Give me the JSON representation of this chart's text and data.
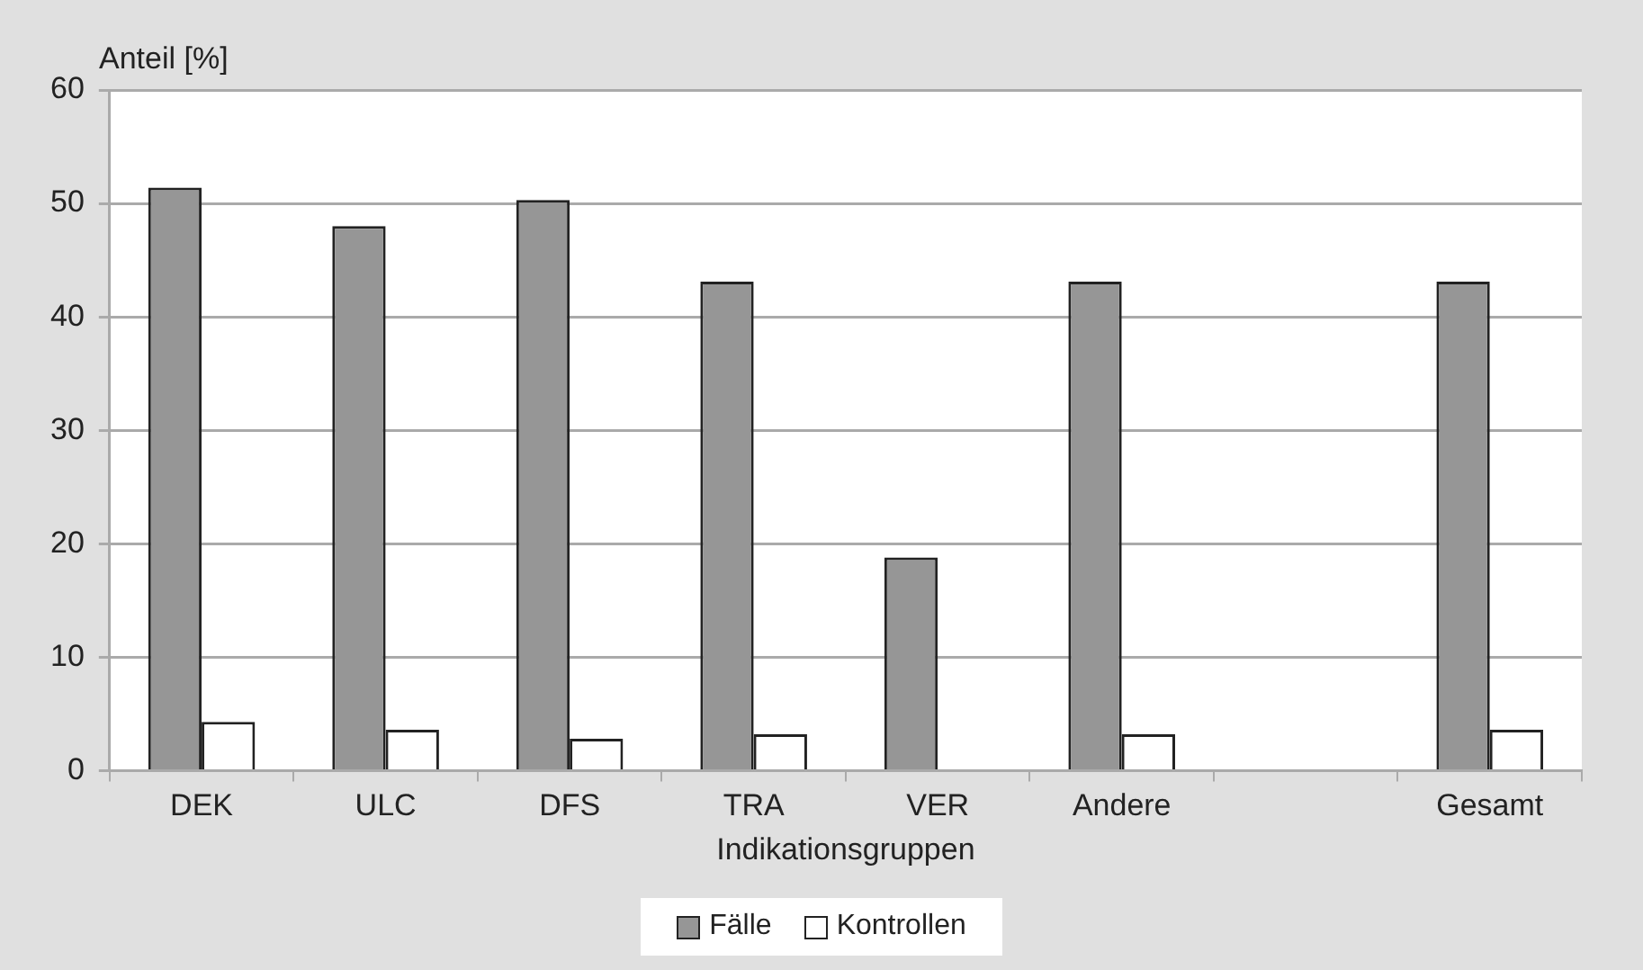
{
  "chart_data": {
    "type": "bar",
    "ylabel": "Anteil [%]",
    "xlabel": "Indikationsgruppen",
    "categories": [
      "DEK",
      "ULC",
      "DFS",
      "TRA",
      "VER",
      "Andere",
      null,
      "Gesamt"
    ],
    "series": [
      {
        "name": "Fälle",
        "color": "#969696",
        "values": [
          51.4,
          48.0,
          50.3,
          43.1,
          18.8,
          43.1,
          null,
          43.1
        ]
      },
      {
        "name": "Kontrollen",
        "color": "#ffffff",
        "values": [
          4.3,
          3.6,
          2.8,
          3.2,
          null,
          3.2,
          null,
          3.6
        ]
      }
    ],
    "ylim": [
      0,
      60
    ],
    "yticks": [
      0,
      10,
      20,
      30,
      40,
      50,
      60
    ],
    "grid": "y",
    "legend": "bottom"
  }
}
